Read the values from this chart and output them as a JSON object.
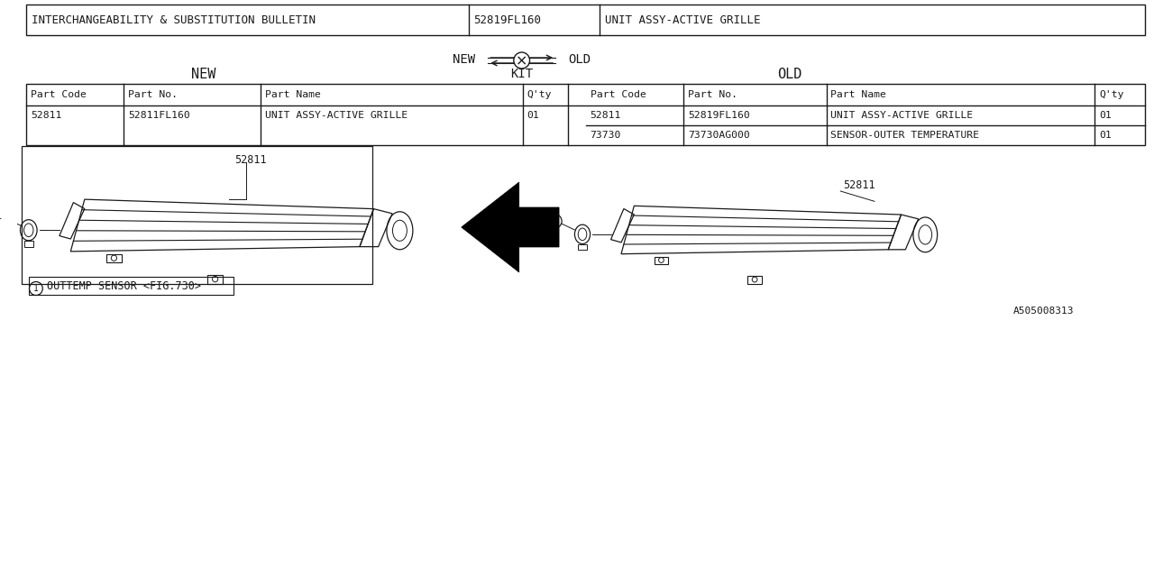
{
  "bg_color": "#ffffff",
  "line_color": "#1a1a1a",
  "font_color": "#1a1a1a",
  "header": {
    "col1": "INTERCHANGEABILITY & SUBSTITUTION BULLETIN",
    "col2": "52819FL160",
    "col3": "UNIT ASSY-ACTIVE GRILLE"
  },
  "legend_new": "NEW",
  "legend_old": "OLD",
  "legend_kit": "KIT",
  "table_headers_new": [
    "Part Code",
    "Part No.",
    "Part Name",
    "Q'ty"
  ],
  "table_headers_old": [
    "Part Code",
    "Part No.",
    "Part Name",
    "Q'ty"
  ],
  "new_row": [
    "52811",
    "52811FL160",
    "UNIT ASSY-ACTIVE GRILLE",
    "01"
  ],
  "old_rows": [
    [
      "52811",
      "52819FL160",
      "UNIT ASSY-ACTIVE GRILLE",
      "01"
    ],
    [
      "73730",
      "73730AG000",
      "SENSOR-OUTER TEMPERATURE",
      "01"
    ]
  ],
  "label_new": "52811",
  "label_old": "52811",
  "footnote_text": "OUTTEMP SENSOR <FIG.730>",
  "doc_number": "A505008313"
}
